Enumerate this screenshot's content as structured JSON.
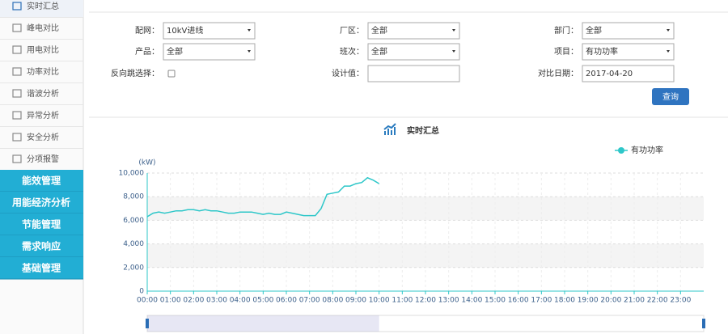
{
  "sidebar": {
    "items": [
      "实时汇总",
      "峰电对比",
      "用电对比",
      "功率对比",
      "谐波分析",
      "异常分析",
      "安全分析",
      "分项报警"
    ],
    "sections": [
      "能效管理",
      "用能经济分析",
      "节能管理",
      "需求响应",
      "基础管理"
    ]
  },
  "filters": {
    "fields": [
      {
        "label": "配网：",
        "value": "10kV进线",
        "kind": "select"
      },
      {
        "label": "厂区：",
        "value": "全部",
        "kind": "select"
      },
      {
        "label": "部门：",
        "value": "全部",
        "kind": "select"
      },
      {
        "label": "产品：",
        "value": "全部",
        "kind": "select"
      },
      {
        "label": "班次：",
        "value": "全部",
        "kind": "select"
      },
      {
        "label": "项目：",
        "value": "有功功率",
        "kind": "select"
      },
      {
        "label": "反向跳选择：",
        "kind": "checkbox"
      },
      {
        "label": "设计值：",
        "kind": "input"
      },
      {
        "label": "对比日期：",
        "value": "2017-04-20",
        "kind": "input"
      }
    ],
    "button": "查询"
  },
  "chart_data": {
    "type": "line",
    "title": "实时汇总",
    "y_label": "(kW)",
    "x": [
      0,
      0.25,
      0.5,
      0.75,
      1,
      1.25,
      1.5,
      1.75,
      2,
      2.25,
      2.5,
      2.75,
      3,
      3.25,
      3.5,
      3.75,
      4,
      4.25,
      4.5,
      4.75,
      5,
      5.25,
      5.5,
      5.75,
      6,
      6.25,
      6.5,
      6.75,
      7,
      7.25,
      7.5,
      7.75,
      8,
      8.25,
      8.5,
      8.75,
      9,
      9.25,
      9.5,
      9.75,
      10
    ],
    "series": [
      {
        "name": "有功功率",
        "color": "#2ec7c9",
        "values": [
          6300,
          6600,
          6700,
          6600,
          6700,
          6800,
          6800,
          6900,
          6900,
          6800,
          6900,
          6800,
          6800,
          6700,
          6600,
          6600,
          6700,
          6700,
          6700,
          6600,
          6500,
          6600,
          6500,
          6500,
          6700,
          6600,
          6500,
          6400,
          6400,
          6400,
          7000,
          8200,
          8300,
          8400,
          8900,
          8900,
          9100,
          9200,
          9600,
          9400,
          9100
        ]
      }
    ],
    "xlim": [
      0,
      24
    ],
    "xticks": [
      {
        "value": 0,
        "label": "00:00"
      },
      {
        "value": 1,
        "label": "01:00"
      },
      {
        "value": 2,
        "label": "02:00"
      },
      {
        "value": 3,
        "label": "03:00"
      },
      {
        "value": 4,
        "label": "04:00"
      },
      {
        "value": 5,
        "label": "05:00"
      },
      {
        "value": 6,
        "label": "06:00"
      },
      {
        "value": 7,
        "label": "07:00"
      },
      {
        "value": 8,
        "label": "08:00"
      },
      {
        "value": 9,
        "label": "09:00"
      },
      {
        "value": 10,
        "label": "10:00"
      },
      {
        "value": 11,
        "label": "11:00"
      },
      {
        "value": 12,
        "label": "12:00"
      },
      {
        "value": 13,
        "label": "13:00"
      },
      {
        "value": 14,
        "label": "14:00"
      },
      {
        "value": 15,
        "label": "15:00"
      },
      {
        "value": 16,
        "label": "16:00"
      },
      {
        "value": 17,
        "label": "17:00"
      },
      {
        "value": 18,
        "label": "18:00"
      },
      {
        "value": 19,
        "label": "19:00"
      },
      {
        "value": 20,
        "label": "20:00"
      },
      {
        "value": 21,
        "label": "21:00"
      },
      {
        "value": 22,
        "label": "22:00"
      },
      {
        "value": 23,
        "label": "23:00"
      }
    ],
    "ylim": [
      0,
      10000
    ],
    "yticks": [
      0,
      {
        "value": 2000,
        "label": "2,000"
      },
      {
        "value": 4000,
        "label": "4,000"
      },
      {
        "value": 6000,
        "label": "6,000"
      },
      {
        "value": 8000,
        "label": "8,000"
      },
      {
        "value": 10000,
        "label": "10,000"
      }
    ],
    "grid": true
  }
}
